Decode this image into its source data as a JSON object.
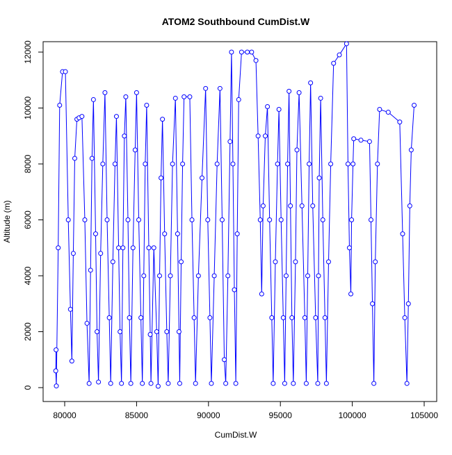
{
  "chart_data": {
    "type": "line",
    "title": "ATOM2 Southbound CumDist.W",
    "x_label": "CumDist.W",
    "y_label": "Altitude (m)",
    "x": [
      79400,
      79380,
      79420,
      79550,
      79650,
      79850,
      80050,
      80250,
      80400,
      80500,
      80600,
      80700,
      80850,
      81000,
      81200,
      81400,
      81550,
      81700,
      81800,
      81900,
      82000,
      82150,
      82250,
      82350,
      82500,
      82650,
      82800,
      82950,
      83100,
      83200,
      83350,
      83500,
      83600,
      83750,
      83850,
      83950,
      84050,
      84150,
      84250,
      84400,
      84500,
      84600,
      84750,
      84900,
      85000,
      85150,
      85300,
      85400,
      85500,
      85600,
      85700,
      85850,
      85950,
      86000,
      86200,
      86400,
      86500,
      86600,
      86700,
      86800,
      86950,
      87100,
      87200,
      87350,
      87500,
      87700,
      87850,
      87950,
      88000,
      88100,
      88200,
      88300,
      88700,
      88850,
      89000,
      89100,
      89300,
      89550,
      89800,
      89950,
      90100,
      90200,
      90400,
      90600,
      90800,
      90950,
      91100,
      91200,
      91350,
      91500,
      91600,
      91700,
      91800,
      91900,
      92000,
      92100,
      92300,
      92700,
      93000,
      93300,
      93450,
      93600,
      93700,
      93800,
      93950,
      94100,
      94250,
      94400,
      94500,
      94650,
      94800,
      94900,
      95050,
      95200,
      95300,
      95400,
      95500,
      95600,
      95700,
      95800,
      95900,
      96050,
      96150,
      96300,
      96500,
      96700,
      96800,
      96900,
      97000,
      97100,
      97250,
      97450,
      97600,
      97650,
      97700,
      97800,
      97950,
      98100,
      98200,
      98350,
      98500,
      98700,
      99100,
      99600,
      99700,
      99800,
      99900,
      99950,
      100050,
      100100,
      100600,
      101200,
      101300,
      101400,
      101500,
      101600,
      101750,
      101900,
      102500,
      103300,
      103500,
      103650,
      103800,
      103900,
      104000,
      104100,
      104300
    ],
    "series": [
      {
        "name": "Altitude",
        "color": "#0000ff",
        "values": [
          1350,
          600,
          60,
          5000,
          10100,
          11300,
          11300,
          6000,
          2800,
          950,
          4800,
          8200,
          9600,
          9650,
          9700,
          6000,
          2300,
          150,
          4200,
          8200,
          10300,
          5500,
          2000,
          200,
          4800,
          8000,
          10550,
          6000,
          2500,
          150,
          4500,
          8000,
          9700,
          5000,
          2000,
          150,
          5000,
          9000,
          10400,
          6000,
          2500,
          150,
          5000,
          8500,
          10550,
          6000,
          2500,
          150,
          4000,
          8000,
          10100,
          5000,
          1900,
          150,
          5000,
          2000,
          50,
          4000,
          7500,
          9600,
          5500,
          2000,
          150,
          4000,
          8000,
          10350,
          5500,
          2000,
          150,
          4500,
          8000,
          10400,
          10400,
          6000,
          2500,
          150,
          4000,
          7500,
          10700,
          6000,
          2500,
          150,
          4000,
          8000,
          10700,
          6000,
          1000,
          150,
          4000,
          8800,
          12000,
          8000,
          3500,
          150,
          5500,
          10300,
          12000,
          12000,
          12000,
          11700,
          9000,
          6000,
          3350,
          6500,
          9000,
          10050,
          6000,
          2500,
          150,
          4500,
          8000,
          9950,
          6000,
          2500,
          150,
          4000,
          8000,
          10600,
          6500,
          2500,
          150,
          4500,
          8500,
          10550,
          6500,
          2500,
          150,
          4000,
          8000,
          10900,
          6500,
          2500,
          150,
          4000,
          7500,
          10350,
          6000,
          2500,
          150,
          4500,
          8000,
          11600,
          11900,
          12300,
          8000,
          5000,
          3350,
          6000,
          8000,
          8900,
          8850,
          8800,
          6000,
          3000,
          150,
          4500,
          8000,
          9950,
          9850,
          9500,
          5500,
          2500,
          150,
          3000,
          6500,
          8500,
          10100
        ]
      }
    ],
    "xlim": [
      78500,
      105870
    ],
    "ylim": [
      -497,
      12373
    ],
    "xticks": [
      80000,
      85000,
      90000,
      95000,
      100000,
      105000
    ],
    "yticks": [
      0,
      2000,
      4000,
      6000,
      8000,
      10000,
      12000
    ],
    "grid": false
  }
}
